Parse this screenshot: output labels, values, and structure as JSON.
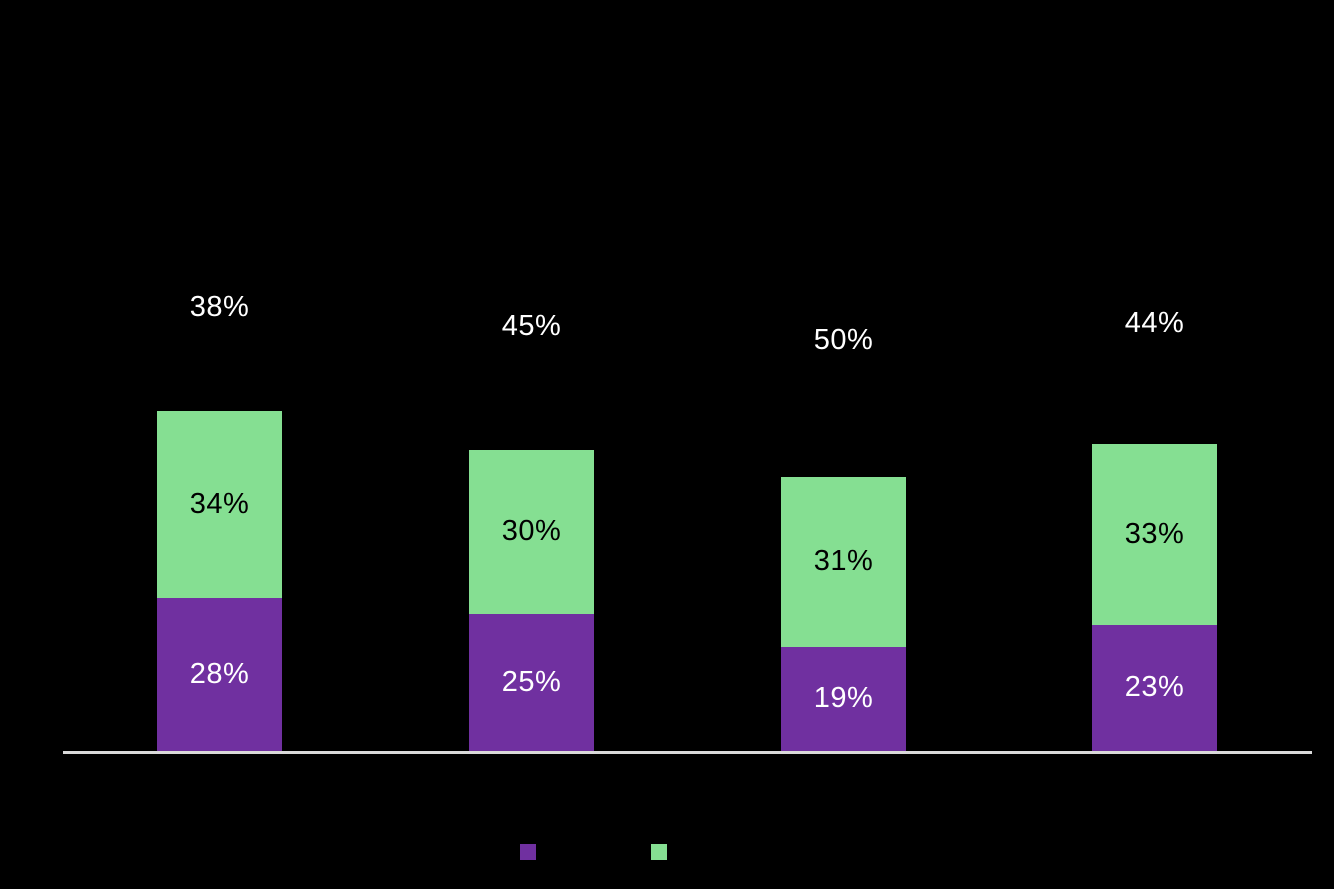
{
  "colors": {
    "background": "#000000",
    "purple": "#7030A0",
    "green": "#85DF92",
    "axis_line": "#D9D9D9",
    "top_label_text": "#FFFFFF",
    "green_label_text": "#000000",
    "purple_label_text": "#FFFFFF"
  },
  "chart_data": {
    "type": "bar",
    "subtype": "100-percent-stacked-column",
    "stacked": true,
    "orientation": "vertical",
    "categories": [
      "",
      "",
      "",
      ""
    ],
    "series": [
      {
        "name": "",
        "swatch": "purple",
        "color": "#7030A0",
        "values": [
          28,
          25,
          19,
          23
        ]
      },
      {
        "name": "",
        "swatch": "green",
        "color": "#85DF92",
        "values": [
          34,
          30,
          31,
          33
        ]
      },
      {
        "name": "",
        "swatch": "none-background",
        "color": "#000000",
        "values": [
          38,
          45,
          50,
          44
        ]
      }
    ],
    "value_label_format": "percent",
    "ylim": [
      0,
      100
    ],
    "grid": false,
    "axis_baseline": true,
    "legend_position": "bottom-center"
  },
  "bars": [
    {
      "top": {
        "value": 38,
        "label": "38%"
      },
      "green": {
        "value": 34,
        "label": "34%"
      },
      "purple": {
        "value": 28,
        "label": "28%"
      }
    },
    {
      "top": {
        "value": 45,
        "label": "45%"
      },
      "green": {
        "value": 30,
        "label": "30%"
      },
      "purple": {
        "value": 25,
        "label": "25%"
      }
    },
    {
      "top": {
        "value": 50,
        "label": "50%"
      },
      "green": {
        "value": 31,
        "label": "31%"
      },
      "purple": {
        "value": 19,
        "label": "19%"
      }
    },
    {
      "top": {
        "value": 44,
        "label": "44%"
      },
      "green": {
        "value": 33,
        "label": "33%"
      },
      "purple": {
        "value": 23,
        "label": "23%"
      }
    }
  ],
  "legend": {
    "items": [
      {
        "swatch": "purple",
        "color": "#7030A0",
        "label": ""
      },
      {
        "swatch": "green",
        "color": "#85DF92",
        "label": ""
      }
    ]
  }
}
